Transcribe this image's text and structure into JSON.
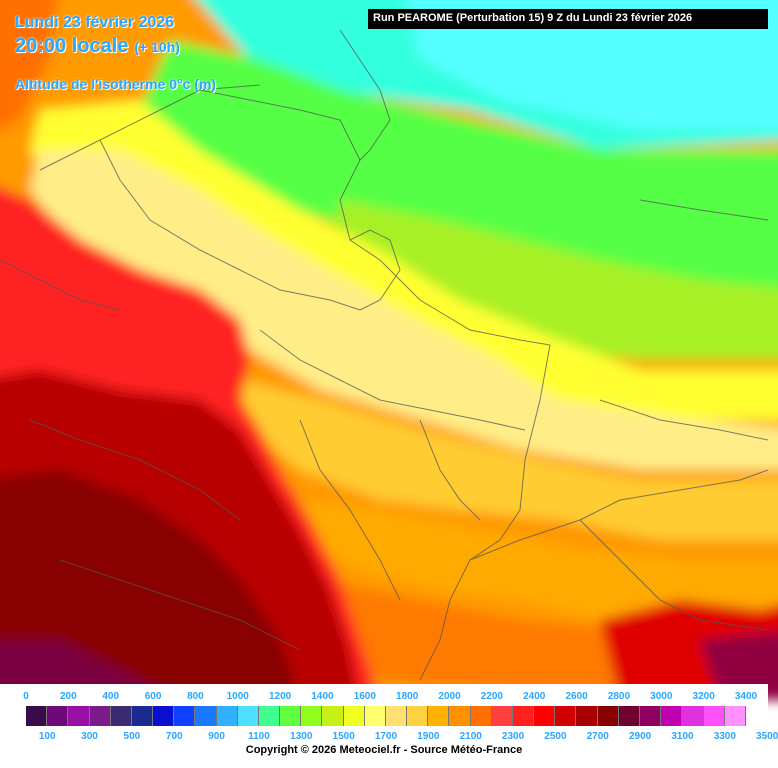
{
  "header": {
    "date": "Lundi 23 février 2026",
    "time": "20:00 locale",
    "offset": "(+ 10h)",
    "subtitle": "Altitude de l'isotherme 0°c (m)"
  },
  "run_banner": "Run PEAROME (Perturbation 15) 9 Z du Lundi 23 février 2026",
  "legend": {
    "labels_top": [
      "0",
      "200",
      "400",
      "600",
      "800",
      "1000",
      "1200",
      "1400",
      "1600",
      "1800",
      "2000",
      "2200",
      "2400",
      "2600",
      "2800",
      "3000",
      "3200",
      "3400"
    ],
    "labels_bottom": [
      "100",
      "300",
      "500",
      "700",
      "900",
      "1100",
      "1300",
      "1500",
      "1700",
      "1900",
      "2100",
      "2300",
      "2500",
      "2700",
      "2900",
      "3100",
      "3300",
      "3500"
    ],
    "colors": [
      "#3a0a4a",
      "#6b0a78",
      "#9a10a4",
      "#7c1a8c",
      "#3a2a70",
      "#1a2a90",
      "#0a10d0",
      "#1040ff",
      "#1a78ff",
      "#30b0ff",
      "#50e0ff",
      "#40ff90",
      "#60ff40",
      "#90ff20",
      "#c8f018",
      "#f0ff20",
      "#ffff70",
      "#ffe070",
      "#ffd040",
      "#ffb000",
      "#ff9000",
      "#ff7000",
      "#ff4040",
      "#ff2020",
      "#ff0000",
      "#d00000",
      "#a80000",
      "#880000",
      "#700030",
      "#900060",
      "#c000b0",
      "#e030e0",
      "#ff50ff",
      "#ff90ff"
    ]
  },
  "copyright": "Copyright © 2026 Meteociel.fr - Source Météo-France"
}
